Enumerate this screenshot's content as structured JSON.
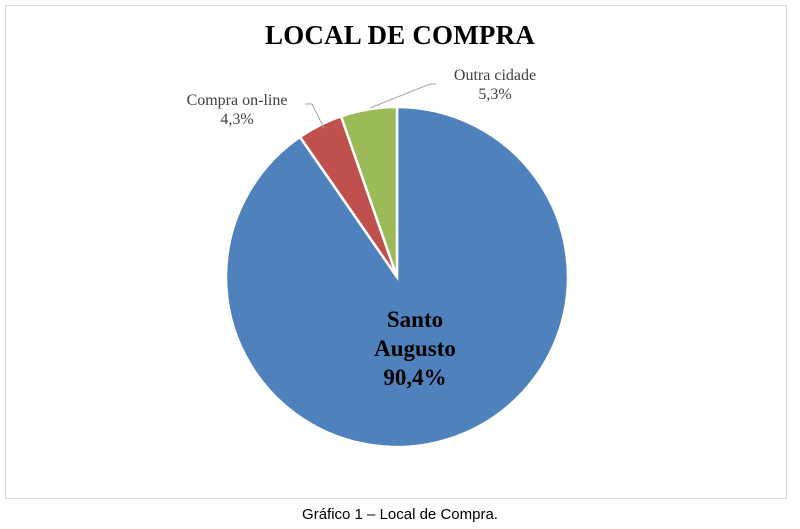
{
  "chart_data": {
    "type": "pie",
    "title": "LOCAL DE COMPRA",
    "categories": [
      "Santo Augusto",
      "Compra on-line",
      "Outra cidade"
    ],
    "values": [
      90.4,
      4.3,
      5.3
    ],
    "labels": [
      "90,4%",
      "4,3%",
      "5,3%"
    ],
    "colors": [
      "#4f81bd",
      "#c0504d",
      "#9bbb59"
    ],
    "legend": "none (data labels with category names)"
  },
  "title": "LOCAL DE COMPRA",
  "labels": {
    "santo_augusto": {
      "name_line1": "Santo",
      "name_line2": "Augusto",
      "pct": "90,4%"
    },
    "compra_online": {
      "name": "Compra on-line",
      "pct": "4,3%"
    },
    "outra_cidade": {
      "name": "Outra cidade",
      "pct": "5,3%"
    }
  },
  "caption": "Gráfico 1  – Local de Compra."
}
